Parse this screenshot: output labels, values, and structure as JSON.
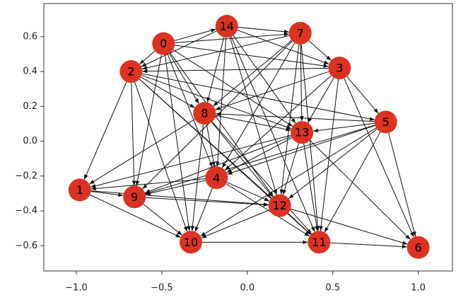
{
  "chart_data": {
    "type": "network",
    "node_color": "#dc3222",
    "edge_color": "#111111",
    "xlim": [
      -1.19,
      1.2
    ],
    "ylim": [
      -0.745,
      0.79
    ],
    "xticks": [
      {
        "value": -1.0,
        "label": "−1.0"
      },
      {
        "value": -0.5,
        "label": "−0.5"
      },
      {
        "value": 0.0,
        "label": "0.0"
      },
      {
        "value": 0.5,
        "label": "0.5"
      },
      {
        "value": 1.0,
        "label": "1.0"
      }
    ],
    "yticks": [
      {
        "value": -0.6,
        "label": "−0.6"
      },
      {
        "value": -0.4,
        "label": "−0.4"
      },
      {
        "value": -0.2,
        "label": "−0.2"
      },
      {
        "value": 0.0,
        "label": "0.0"
      },
      {
        "value": 0.2,
        "label": "0.2"
      },
      {
        "value": 0.4,
        "label": "0.4"
      },
      {
        "value": 0.6,
        "label": "0.6"
      }
    ],
    "nodes": [
      {
        "label": 0,
        "x": -0.49,
        "y": 0.56
      },
      {
        "label": 1,
        "x": -0.98,
        "y": -0.28
      },
      {
        "label": 2,
        "x": -0.68,
        "y": 0.4
      },
      {
        "label": 3,
        "x": 0.54,
        "y": 0.42
      },
      {
        "label": 4,
        "x": -0.18,
        "y": -0.21
      },
      {
        "label": 5,
        "x": 0.81,
        "y": 0.11
      },
      {
        "label": 6,
        "x": 1.0,
        "y": -0.61
      },
      {
        "label": 7,
        "x": 0.31,
        "y": 0.62
      },
      {
        "label": 8,
        "x": -0.25,
        "y": 0.16
      },
      {
        "label": 9,
        "x": -0.66,
        "y": -0.32
      },
      {
        "label": 10,
        "x": -0.33,
        "y": -0.58
      },
      {
        "label": 11,
        "x": 0.42,
        "y": -0.58
      },
      {
        "label": 12,
        "x": 0.19,
        "y": -0.37
      },
      {
        "label": 13,
        "x": 0.32,
        "y": 0.05
      },
      {
        "label": 14,
        "x": -0.12,
        "y": 0.66
      }
    ],
    "edges": [
      [
        0,
        14
      ],
      [
        0,
        7
      ],
      [
        0,
        2
      ],
      [
        0,
        8
      ],
      [
        0,
        9
      ],
      [
        0,
        10
      ],
      [
        0,
        4
      ],
      [
        0,
        3
      ],
      [
        0,
        13
      ],
      [
        0,
        12
      ],
      [
        14,
        7
      ],
      [
        14,
        2
      ],
      [
        14,
        8
      ],
      [
        14,
        3
      ],
      [
        14,
        4
      ],
      [
        14,
        12
      ],
      [
        14,
        13
      ],
      [
        14,
        11
      ],
      [
        7,
        2
      ],
      [
        7,
        3
      ],
      [
        7,
        8
      ],
      [
        7,
        9
      ],
      [
        7,
        13
      ],
      [
        7,
        11
      ],
      [
        7,
        4
      ],
      [
        7,
        12
      ],
      [
        3,
        5
      ],
      [
        3,
        2
      ],
      [
        3,
        8
      ],
      [
        3,
        13
      ],
      [
        3,
        11
      ],
      [
        3,
        4
      ],
      [
        3,
        6
      ],
      [
        2,
        1
      ],
      [
        2,
        8
      ],
      [
        2,
        9
      ],
      [
        2,
        12
      ],
      [
        2,
        11
      ],
      [
        2,
        13
      ],
      [
        2,
        5
      ],
      [
        2,
        10
      ],
      [
        5,
        13
      ],
      [
        5,
        8
      ],
      [
        5,
        4
      ],
      [
        5,
        12
      ],
      [
        5,
        6
      ],
      [
        5,
        11
      ],
      [
        5,
        9
      ],
      [
        5,
        10
      ],
      [
        8,
        13
      ],
      [
        8,
        4
      ],
      [
        8,
        10
      ],
      [
        8,
        12
      ],
      [
        8,
        11
      ],
      [
        8,
        1
      ],
      [
        13,
        12
      ],
      [
        13,
        11
      ],
      [
        13,
        4
      ],
      [
        13,
        9
      ],
      [
        13,
        1
      ],
      [
        13,
        6
      ],
      [
        4,
        9
      ],
      [
        4,
        1
      ],
      [
        4,
        10
      ],
      [
        4,
        12
      ],
      [
        4,
        11
      ],
      [
        1,
        9
      ],
      [
        1,
        12
      ],
      [
        1,
        10
      ],
      [
        9,
        10
      ],
      [
        9,
        12
      ],
      [
        12,
        11
      ],
      [
        12,
        6
      ],
      [
        12,
        10
      ],
      [
        10,
        11
      ],
      [
        11,
        6
      ]
    ]
  }
}
